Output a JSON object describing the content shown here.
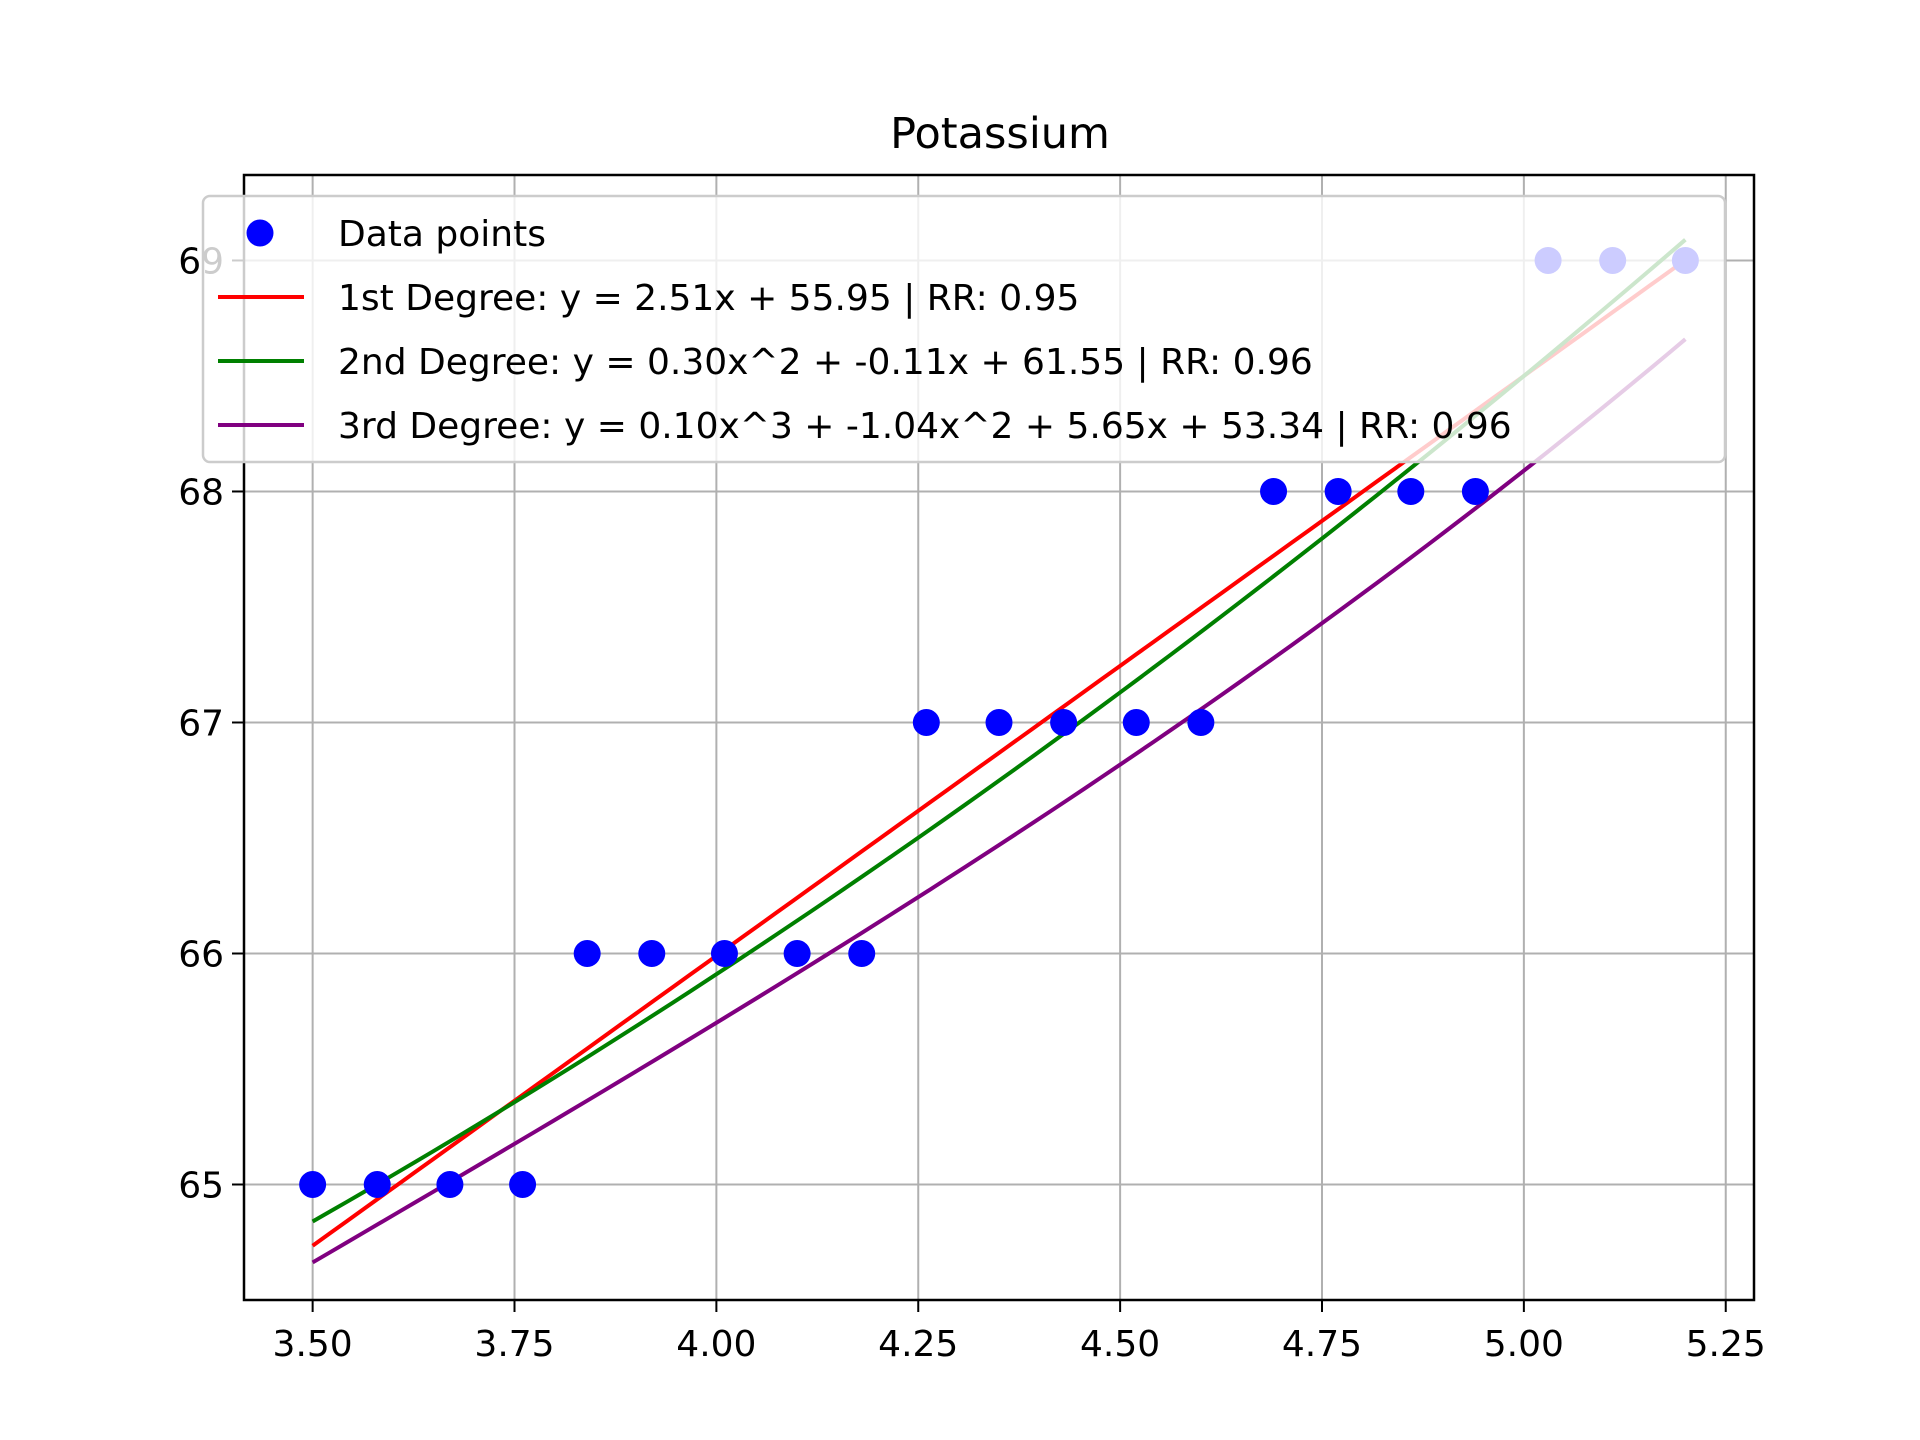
{
  "chart_data": {
    "type": "scatter",
    "title": "Potassium",
    "xlabel": "",
    "ylabel": "",
    "xlim": [
      3.415,
      5.285
    ],
    "ylim": [
      64.5,
      69.37
    ],
    "xticks": [
      3.5,
      3.75,
      4.0,
      4.25,
      4.5,
      4.75,
      5.0,
      5.25
    ],
    "xtick_labels": [
      "3.50",
      "3.75",
      "4.00",
      "4.25",
      "4.50",
      "4.75",
      "5.00",
      "5.25"
    ],
    "yticks": [
      65,
      66,
      67,
      68,
      69
    ],
    "ytick_labels": [
      "65",
      "66",
      "67",
      "68",
      "69"
    ],
    "grid": true,
    "legend_position": "top",
    "points": {
      "name": "Data points",
      "color": "#0000ff",
      "x": [
        3.5,
        3.58,
        3.67,
        3.76,
        3.84,
        3.92,
        4.01,
        4.1,
        4.18,
        4.26,
        4.35,
        4.43,
        4.52,
        4.6,
        4.69,
        4.77,
        4.86,
        4.94,
        5.03,
        5.11,
        5.2
      ],
      "y": [
        65,
        65,
        65,
        65,
        66,
        66,
        66,
        66,
        66,
        67,
        67,
        67,
        67,
        67,
        68,
        68,
        68,
        68,
        69,
        69,
        69
      ]
    },
    "fits": [
      {
        "name": "1st Degree: y = 2.51x + 55.95 | RR: 0.95",
        "color": "#ff0000",
        "coefficients": [
          55.95,
          2.51
        ]
      },
      {
        "name": "2nd Degree: y = 0.30x^2 + -0.11x + 61.55 | RR: 0.96",
        "color": "#008000",
        "coefficients": [
          61.55,
          -0.11,
          0.3
        ]
      },
      {
        "name": "3rd Degree: y = 0.10x^3 + -1.04x^2 + 5.65x + 53.34 | RR: 0.96",
        "color": "#800080",
        "coefficients": [
          53.34,
          5.65,
          -1.04,
          0.1
        ]
      }
    ],
    "fit_range": [
      3.5,
      5.2
    ]
  }
}
